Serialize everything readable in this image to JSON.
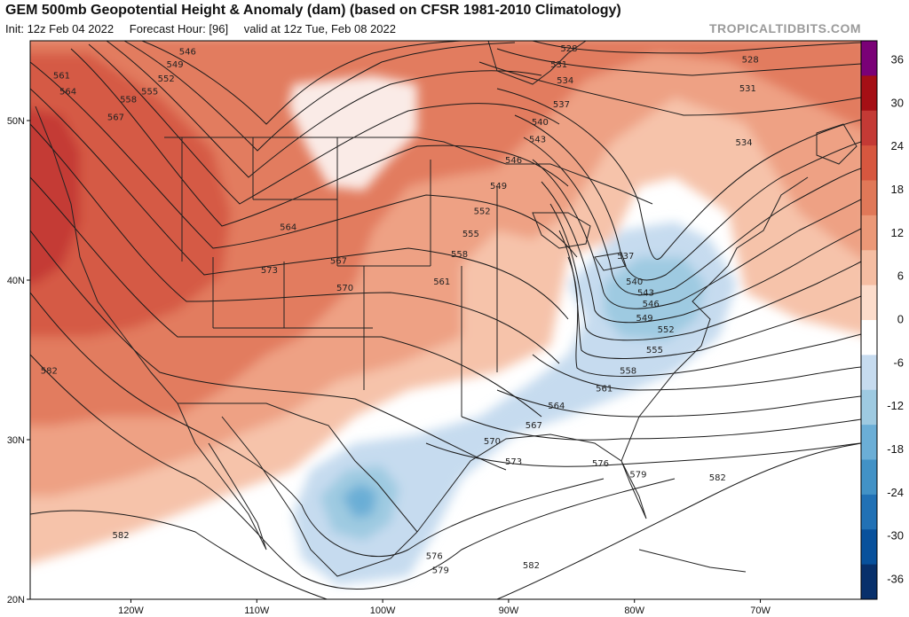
{
  "header": {
    "title": "GEM 500mb Geopotential Height & Anomaly (dam) (based on CFSR 1981-2010 Climatology)",
    "init": "Init: 12z Feb 04 2022",
    "forecast_hour": "Forecast Hour: [96]",
    "valid": "valid at 12z Tue, Feb 08 2022",
    "site": "TROPICALTIDBITS.COM"
  },
  "map": {
    "lon_range": [
      -128,
      -62
    ],
    "lat_range": [
      20,
      55
    ],
    "lat_labels": [
      "20N",
      "30N",
      "40N",
      "50N"
    ],
    "lon_labels": [
      "120W",
      "110W",
      "100W",
      "90W",
      "80W",
      "70W"
    ],
    "colors": {
      "land_border": "#222222",
      "contour": "#1a1a1a"
    },
    "contour_labels": [
      {
        "text": "546",
        "lon": -115.5,
        "lat": 54.3
      },
      {
        "text": "549",
        "lon": -116.5,
        "lat": 53.5
      },
      {
        "text": "552",
        "lon": -117.2,
        "lat": 52.6
      },
      {
        "text": "555",
        "lon": -118.5,
        "lat": 51.8
      },
      {
        "text": "558",
        "lon": -120.2,
        "lat": 51.3
      },
      {
        "text": "561",
        "lon": -125.5,
        "lat": 52.8
      },
      {
        "text": "564",
        "lon": -125.0,
        "lat": 51.8
      },
      {
        "text": "567",
        "lon": -121.2,
        "lat": 50.2
      },
      {
        "text": "564",
        "lon": -107.5,
        "lat": 43.3
      },
      {
        "text": "567",
        "lon": -103.5,
        "lat": 41.2
      },
      {
        "text": "570",
        "lon": -103.0,
        "lat": 39.5
      },
      {
        "text": "573",
        "lon": -109.0,
        "lat": 40.6
      },
      {
        "text": "582",
        "lon": -126.5,
        "lat": 34.3
      },
      {
        "text": "582",
        "lon": -120.8,
        "lat": 24.0
      },
      {
        "text": "528",
        "lon": -85.2,
        "lat": 54.5
      },
      {
        "text": "531",
        "lon": -86.0,
        "lat": 53.5
      },
      {
        "text": "534",
        "lon": -85.5,
        "lat": 52.5
      },
      {
        "text": "537",
        "lon": -85.8,
        "lat": 51.0
      },
      {
        "text": "540",
        "lon": -87.5,
        "lat": 49.9
      },
      {
        "text": "543",
        "lon": -87.7,
        "lat": 48.8
      },
      {
        "text": "546",
        "lon": -89.6,
        "lat": 47.5
      },
      {
        "text": "549",
        "lon": -90.8,
        "lat": 45.9
      },
      {
        "text": "552",
        "lon": -92.1,
        "lat": 44.3
      },
      {
        "text": "555",
        "lon": -93.0,
        "lat": 42.9
      },
      {
        "text": "558",
        "lon": -93.9,
        "lat": 41.6
      },
      {
        "text": "561",
        "lon": -95.3,
        "lat": 39.9
      },
      {
        "text": "528",
        "lon": -70.8,
        "lat": 53.8
      },
      {
        "text": "531",
        "lon": -71.0,
        "lat": 52.0
      },
      {
        "text": "534",
        "lon": -71.3,
        "lat": 48.6
      },
      {
        "text": "537",
        "lon": -80.7,
        "lat": 41.5
      },
      {
        "text": "540",
        "lon": -80.0,
        "lat": 39.9
      },
      {
        "text": "543",
        "lon": -79.1,
        "lat": 39.2
      },
      {
        "text": "546",
        "lon": -78.7,
        "lat": 38.5
      },
      {
        "text": "549",
        "lon": -79.2,
        "lat": 37.6
      },
      {
        "text": "552",
        "lon": -77.5,
        "lat": 36.9
      },
      {
        "text": "555",
        "lon": -78.4,
        "lat": 35.6
      },
      {
        "text": "558",
        "lon": -80.5,
        "lat": 34.3
      },
      {
        "text": "561",
        "lon": -82.4,
        "lat": 33.2
      },
      {
        "text": "564",
        "lon": -86.2,
        "lat": 32.1
      },
      {
        "text": "567",
        "lon": -88.0,
        "lat": 30.9
      },
      {
        "text": "570",
        "lon": -91.3,
        "lat": 29.9
      },
      {
        "text": "573",
        "lon": -89.6,
        "lat": 28.6
      },
      {
        "text": "576",
        "lon": -82.7,
        "lat": 28.5
      },
      {
        "text": "579",
        "lon": -79.7,
        "lat": 27.8
      },
      {
        "text": "582",
        "lon": -73.4,
        "lat": 27.6
      },
      {
        "text": "576",
        "lon": -95.9,
        "lat": 22.7
      },
      {
        "text": "579",
        "lon": -95.4,
        "lat": 21.8
      },
      {
        "text": "582",
        "lon": -88.2,
        "lat": 22.1
      }
    ]
  },
  "colorbar": {
    "labels": [
      "36",
      "30",
      "24",
      "18",
      "12",
      "6",
      "0",
      "-6",
      "-12",
      "-18",
      "-24",
      "-30",
      "-36"
    ],
    "colors": [
      "#7a0177",
      "#a50f15",
      "#c43a35",
      "#d7573f",
      "#e07858",
      "#eb9877",
      "#f5bda2",
      "#fcdccb",
      "#ffffff",
      "#c6dbef",
      "#9ecae1",
      "#6baed6",
      "#4292c6",
      "#2171b5",
      "#08519c",
      "#08306b"
    ]
  }
}
